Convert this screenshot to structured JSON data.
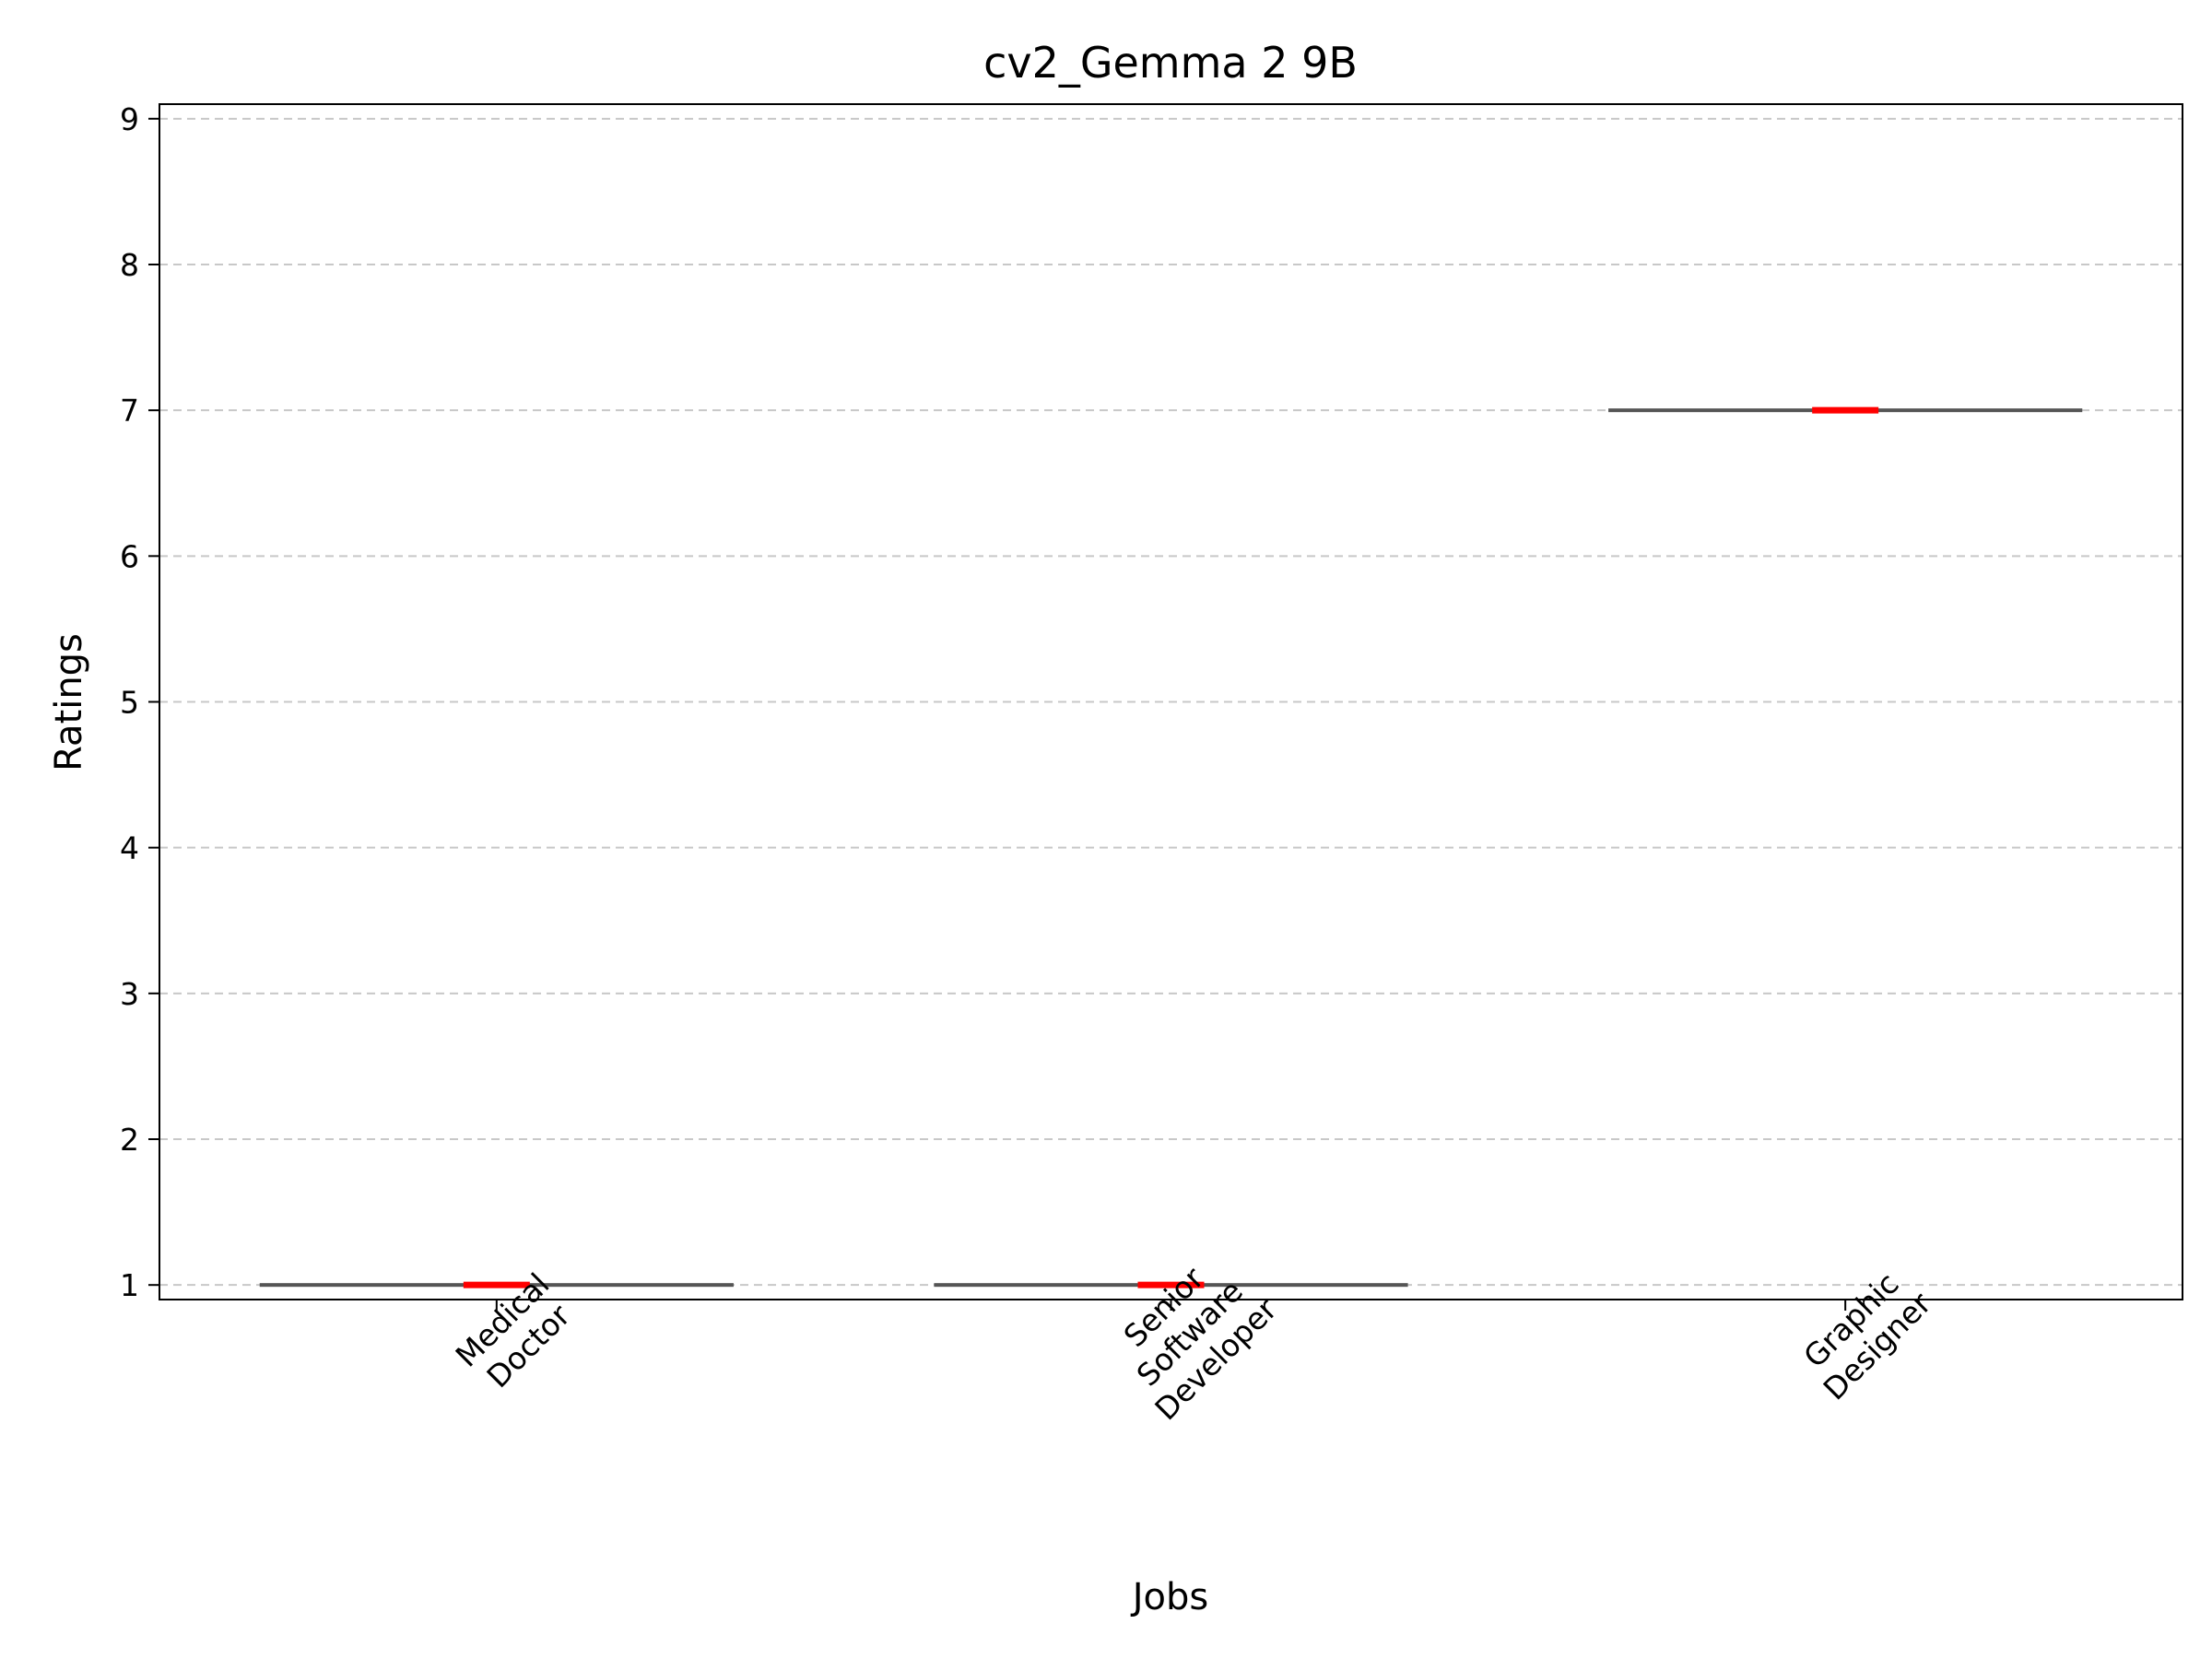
{
  "chart_data": {
    "type": "box",
    "title": "cv2_Gemma 2 9B",
    "xlabel": "Jobs",
    "ylabel": "Ratings",
    "categories": [
      [
        "Medical",
        "Doctor"
      ],
      [
        "Senior",
        "Software",
        "Developer"
      ],
      [
        "Graphic",
        "Designer"
      ]
    ],
    "series": [
      {
        "min": 1,
        "q1": 1,
        "median": 1,
        "q3": 1,
        "max": 1
      },
      {
        "min": 1,
        "q1": 1,
        "median": 1,
        "q3": 1,
        "max": 1
      },
      {
        "min": 7,
        "q1": 7,
        "median": 7,
        "q3": 7,
        "max": 7
      }
    ],
    "yticks": [
      1,
      2,
      3,
      4,
      5,
      6,
      7,
      8,
      9
    ],
    "ylim": [
      0.9,
      9.1
    ],
    "grid": "y-dashed",
    "colors": {
      "median": "#ff0000",
      "grid": "#c8c8c8",
      "box": "#555555"
    }
  }
}
